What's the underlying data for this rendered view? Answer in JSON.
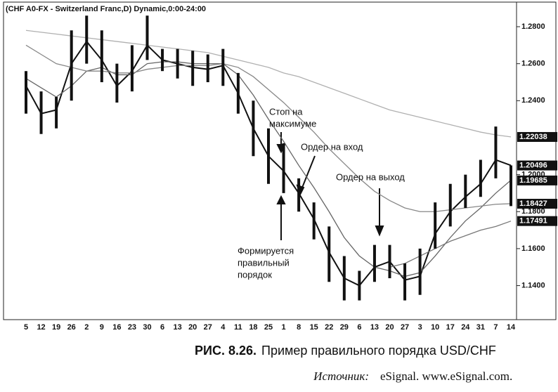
{
  "chart_data": {
    "type": "hilo",
    "title": "(CHF A0-FX - Switzerland Franc,D) Dynamic,0:00-24:00",
    "categories": [
      "5",
      "12",
      "19",
      "26",
      "2",
      "9",
      "16",
      "23",
      "30",
      "6",
      "13",
      "20",
      "27",
      "4",
      "11",
      "18",
      "25",
      "1",
      "8",
      "15",
      "22",
      "29",
      "6",
      "13",
      "20",
      "27",
      "3",
      "10",
      "17",
      "24",
      "31",
      "7",
      "14"
    ],
    "high": [
      1.256,
      1.245,
      1.242,
      1.278,
      1.286,
      1.278,
      1.26,
      1.27,
      1.286,
      1.268,
      1.268,
      1.267,
      1.265,
      1.268,
      1.255,
      1.24,
      1.225,
      1.217,
      1.198,
      1.185,
      1.172,
      1.156,
      1.148,
      1.162,
      1.162,
      1.152,
      1.16,
      1.185,
      1.195,
      1.2,
      1.208,
      1.226,
      1.205
    ],
    "low": [
      1.233,
      1.222,
      1.225,
      1.24,
      1.26,
      1.25,
      1.239,
      1.245,
      1.262,
      1.256,
      1.252,
      1.248,
      1.25,
      1.248,
      1.233,
      1.21,
      1.195,
      1.19,
      1.18,
      1.165,
      1.142,
      1.132,
      1.132,
      1.142,
      1.144,
      1.132,
      1.135,
      1.16,
      1.172,
      1.182,
      1.188,
      1.198,
      1.183
    ],
    "bar_color": "#111111",
    "series": [
      {
        "color": "#111111",
        "values": [
          1.248,
          1.233,
          1.235,
          1.26,
          1.272,
          1.262,
          1.248,
          1.256,
          1.27,
          1.262,
          1.26,
          1.258,
          1.257,
          1.259,
          1.244,
          1.225,
          1.21,
          1.202,
          1.19,
          1.176,
          1.158,
          1.144,
          1.14,
          1.15,
          1.153,
          1.143,
          1.145,
          1.168,
          1.18,
          1.188,
          1.195,
          1.208,
          1.205
        ]
      },
      {
        "color": "#666666",
        "values": [
          1.252,
          1.247,
          1.242,
          1.248,
          1.256,
          1.258,
          1.254,
          1.254,
          1.26,
          1.261,
          1.261,
          1.26,
          1.26,
          1.26,
          1.254,
          1.243,
          1.23,
          1.218,
          1.205,
          1.193,
          1.18,
          1.166,
          1.156,
          1.15,
          1.148,
          1.145,
          1.147,
          1.156,
          1.166,
          1.175,
          1.182,
          1.19,
          1.197
        ]
      },
      {
        "color": "#888888",
        "values": [
          1.27,
          1.265,
          1.26,
          1.258,
          1.256,
          1.256,
          1.255,
          1.255,
          1.257,
          1.258,
          1.259,
          1.259,
          1.259,
          1.26,
          1.258,
          1.253,
          1.246,
          1.239,
          1.231,
          1.223,
          1.214,
          1.206,
          1.198,
          1.191,
          1.186,
          1.182,
          1.18,
          1.18,
          1.181,
          1.182,
          1.183,
          1.184,
          1.1843
        ]
      },
      {
        "color": "#b0b0b0",
        "values": [
          1.278,
          1.277,
          1.276,
          1.275,
          1.274,
          1.273,
          1.272,
          1.271,
          1.27,
          1.269,
          1.268,
          1.267,
          1.266,
          1.264,
          1.262,
          1.26,
          1.258,
          1.255,
          1.253,
          1.25,
          1.247,
          1.244,
          1.241,
          1.238,
          1.235,
          1.233,
          1.231,
          1.229,
          1.227,
          1.225,
          1.223,
          1.2215,
          1.2204
        ]
      },
      {
        "color": "#777777",
        "values": [
          null,
          null,
          null,
          null,
          null,
          null,
          null,
          null,
          null,
          null,
          null,
          null,
          null,
          null,
          null,
          null,
          null,
          null,
          null,
          null,
          null,
          null,
          null,
          null,
          1.15,
          1.152,
          1.156,
          1.16,
          1.164,
          1.167,
          1.17,
          1.172,
          1.1749
        ]
      }
    ],
    "price_labels": [
      {
        "value": 1.22038,
        "label": "1.22038"
      },
      {
        "value": 1.20496,
        "label": "1.20496"
      },
      {
        "value": 1.19685,
        "label": "1.19685"
      },
      {
        "value": 1.18427,
        "label": "1.18427"
      },
      {
        "value": 1.17491,
        "label": "1.17491"
      }
    ],
    "ylim": [
      1.1216,
      1.2933
    ],
    "yticks": [
      {
        "value": 1.28,
        "label": "1.2800"
      },
      {
        "value": 1.26,
        "label": "1.2600"
      },
      {
        "value": 1.24,
        "label": "1.2400"
      },
      {
        "value": 1.2,
        "label": "1.2000"
      },
      {
        "value": 1.18,
        "label": "1.1800"
      },
      {
        "value": 1.16,
        "label": "1.1600"
      },
      {
        "value": 1.14,
        "label": "1.1400"
      }
    ],
    "annotations": [
      {
        "lines": [
          "Стоп на",
          "максимуме"
        ]
      },
      {
        "lines": [
          "Ордер на вход"
        ]
      },
      {
        "lines": [
          "Ордер на выход"
        ]
      },
      {
        "lines": [
          "Формируется",
          "правильный",
          "порядок"
        ]
      }
    ]
  },
  "caption": {
    "number": "РИС. 8.26.",
    "text": "Пример правильного порядка USD/CHF"
  },
  "source": {
    "label": "Источник:",
    "text": "eSignal. www.eSignal.com."
  }
}
